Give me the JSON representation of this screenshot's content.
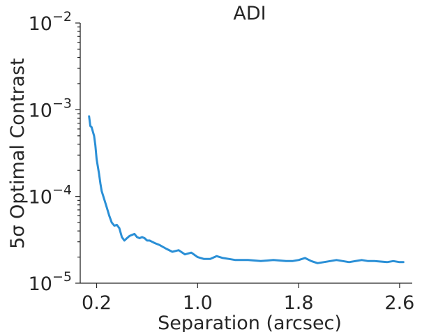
{
  "chart_data": {
    "type": "line",
    "title": "ADI",
    "xlabel": "Separation (arcsec)",
    "ylabel": "5σ Optimal Contrast",
    "xlim": [
      0.07,
      2.7
    ],
    "ylim": [
      1e-05,
      0.01
    ],
    "yscale": "log",
    "grid": false,
    "x_ticks": [
      {
        "value": 0.2,
        "label": "0.2"
      },
      {
        "value": 1.0,
        "label": "1.0"
      },
      {
        "value": 1.8,
        "label": "1.8"
      },
      {
        "value": 2.6,
        "label": "2.6"
      }
    ],
    "y_ticks": [
      {
        "value": 1e-05,
        "base": "10",
        "exp": "−5"
      },
      {
        "value": 0.0001,
        "base": "10",
        "exp": "−4"
      },
      {
        "value": 0.001,
        "base": "10",
        "exp": "−3"
      },
      {
        "value": 0.01,
        "base": "10",
        "exp": "−2"
      }
    ],
    "series": [
      {
        "color": "#2a8fd6",
        "x": [
          0.14,
          0.15,
          0.16,
          0.18,
          0.19,
          0.2,
          0.22,
          0.23,
          0.24,
          0.26,
          0.28,
          0.3,
          0.32,
          0.34,
          0.36,
          0.38,
          0.4,
          0.42,
          0.44,
          0.46,
          0.48,
          0.5,
          0.52,
          0.54,
          0.56,
          0.58,
          0.6,
          0.62,
          0.64,
          0.66,
          0.7,
          0.75,
          0.8,
          0.85,
          0.9,
          0.95,
          1.0,
          1.05,
          1.1,
          1.15,
          1.2,
          1.25,
          1.3,
          1.35,
          1.4,
          1.5,
          1.6,
          1.7,
          1.75,
          1.8,
          1.85,
          1.9,
          1.95,
          2.0,
          2.05,
          2.1,
          2.2,
          2.3,
          2.35,
          2.4,
          2.5,
          2.55,
          2.6,
          2.63
        ],
        "y": [
          0.00084,
          0.00065,
          0.00063,
          0.0005,
          0.00039,
          0.00027,
          0.00018,
          0.00014,
          0.000115,
          9.3e-05,
          7.5e-05,
          6e-05,
          5e-05,
          4.6e-05,
          4.7e-05,
          4.3e-05,
          3.4e-05,
          3.1e-05,
          3.3e-05,
          3.5e-05,
          3.6e-05,
          3.7e-05,
          3.4e-05,
          3.3e-05,
          3.4e-05,
          3.3e-05,
          3.1e-05,
          3.1e-05,
          3e-05,
          2.9e-05,
          2.75e-05,
          2.5e-05,
          2.3e-05,
          2.4e-05,
          2.15e-05,
          2.25e-05,
          2e-05,
          1.9e-05,
          1.9e-05,
          2.05e-05,
          1.95e-05,
          1.9e-05,
          1.85e-05,
          1.85e-05,
          1.85e-05,
          1.8e-05,
          1.85e-05,
          1.8e-05,
          1.8e-05,
          1.85e-05,
          1.95e-05,
          1.8e-05,
          1.7e-05,
          1.75e-05,
          1.8e-05,
          1.85e-05,
          1.75e-05,
          1.85e-05,
          1.8e-05,
          1.8e-05,
          1.75e-05,
          1.8e-05,
          1.75e-05,
          1.75e-05
        ]
      }
    ]
  }
}
